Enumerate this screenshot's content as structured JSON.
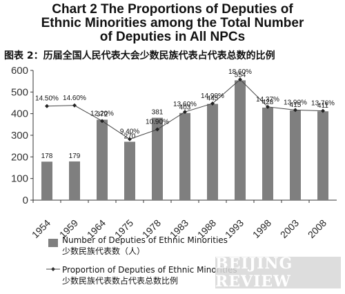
{
  "title": {
    "line1": "Chart 2 The Proportions of Deputies of",
    "line2": "Ethnic Minorities among the Total Number",
    "line3": "of Deputies in All NPCs"
  },
  "subtitle": "图表 2：历届全国人民代表大会少数民族代表占代表总数的比例",
  "legend": {
    "bar_label_en": "Number of Deputies of Ethnic Minorities",
    "bar_label_zh": "少数民族代表数（人）",
    "line_label_en": "Proportion of Deputies of Ethnic Minorities",
    "line_label_zh": "少数民族代表数占代表总数比例"
  },
  "watermark": "BEIJING REVIEW",
  "colors": {
    "bar": "#7f7f7f",
    "line": "#444444",
    "axis": "#333333"
  },
  "chart_data": {
    "type": "bar",
    "categories": [
      "1954",
      "1959",
      "1964",
      "1975",
      "1978",
      "1983",
      "1988",
      "1993",
      "1998",
      "2003",
      "2008"
    ],
    "series": [
      {
        "name": "Number of Deputies of Ethnic Minorities",
        "type": "bar",
        "values": [
          178,
          179,
          372,
          270,
          381,
          403,
          445,
          554,
          428,
          415,
          411
        ],
        "labels": [
          "178",
          "179",
          "372",
          "270",
          "381",
          "403",
          "445",
          "554",
          "428",
          "415",
          "411"
        ]
      },
      {
        "name": "Proportion of Deputies of Ethnic Minorities",
        "type": "line",
        "values": [
          14.5,
          14.6,
          12.2,
          9.4,
          10.9,
          13.6,
          14.9,
          18.6,
          14.37,
          13.9,
          13.76
        ],
        "labels": [
          "14.50%",
          "14.60%",
          "12.20%",
          "9.40%",
          "10.90%",
          "13.60%",
          "14.90%",
          "18.60%",
          "14.37%",
          "13.90%",
          "13.76%"
        ]
      }
    ],
    "ylim": [
      0,
      600
    ],
    "yticks": [
      "0",
      "100",
      "200",
      "300",
      "400",
      "500",
      "600"
    ],
    "y2lim": [
      0,
      20
    ],
    "grid": false,
    "legend_position": "bottom"
  }
}
